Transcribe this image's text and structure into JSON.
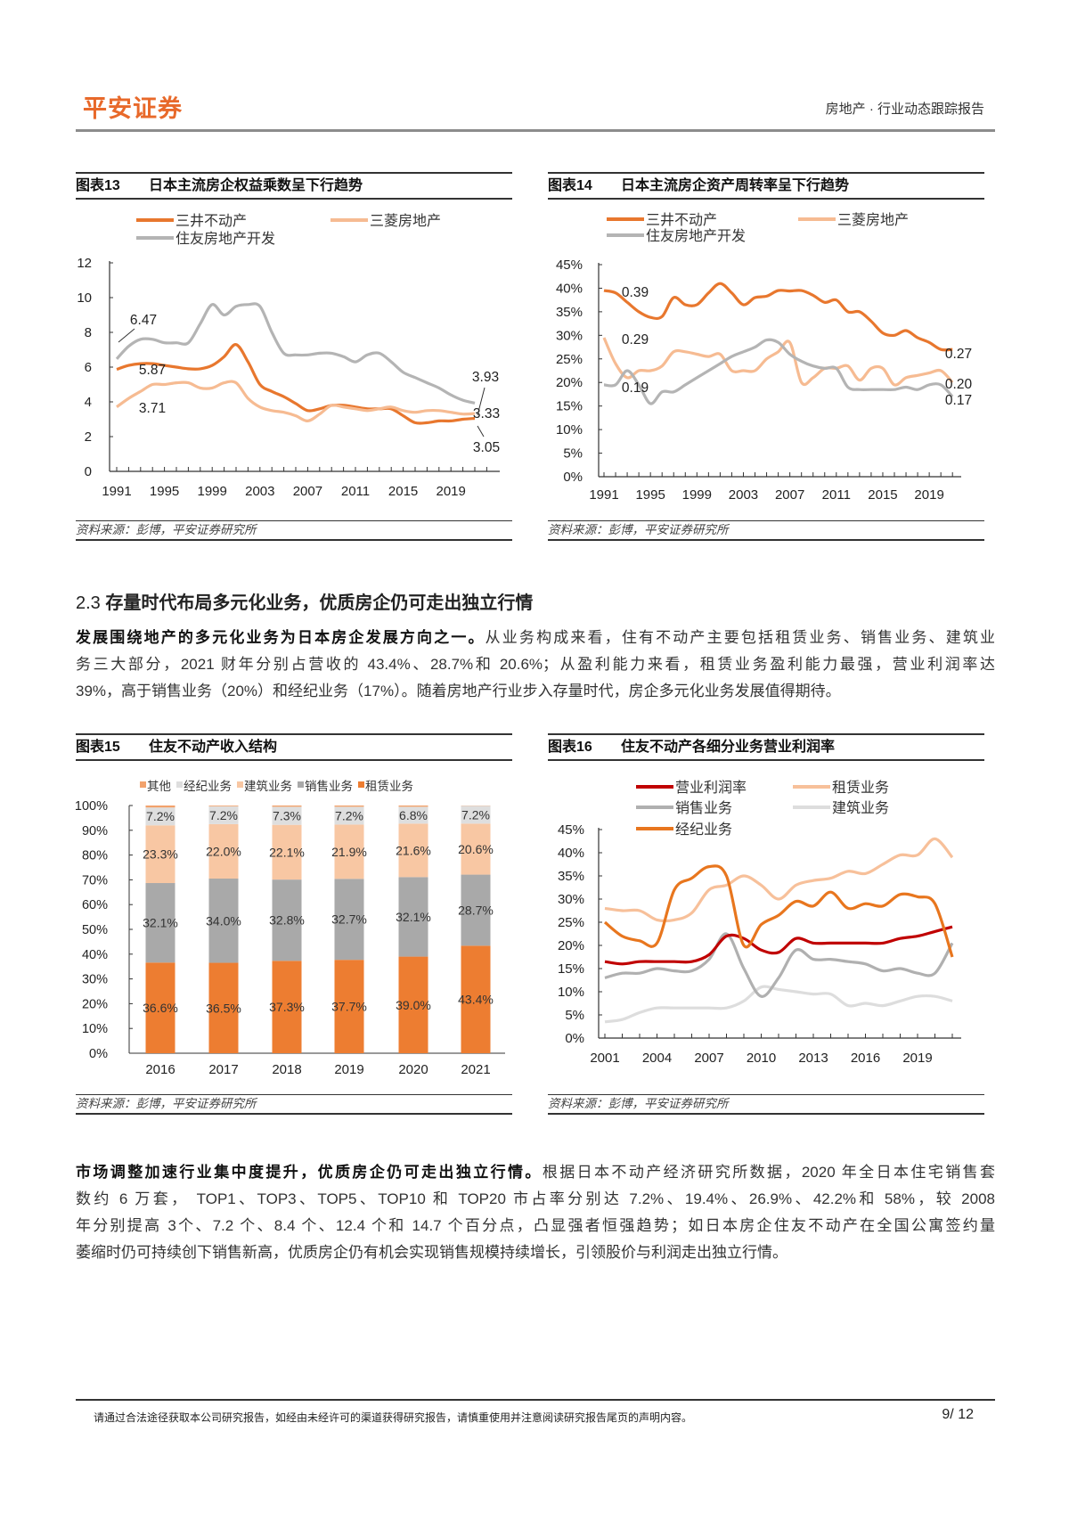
{
  "header": {
    "logo": "平安证券",
    "report_type": "房地产 · 行业动态跟踪报告"
  },
  "section": {
    "number": "2.3",
    "title": "存量时代布局多元化业务，优质房企仍可走出独立行情"
  },
  "paragraphs": [
    {
      "lead": "发展围绕地产的多元化业务为日本房企发展方向之一。",
      "lines": [
        "从业务构成来看，住有不动产主要包括租赁业务、销售业务、建筑业",
        "务三大部分，2021 财年分别占营收的 43.4%、28.7%和 20.6%；从盈利能力来看，租赁业务盈利能力最强，营业利润率达",
        "39%，高于销售业务（20%）和经纪业务（17%）。随着房地产行业步入存量时代，房企多元化业务发展值得期待。"
      ]
    },
    {
      "lead": "市场调整加速行业集中度提升，优质房企仍可走出独立行情。",
      "lines": [
        "根据日本不动产经济研究所数据，2020 年全日本住宅销售套",
        "数约 6 万套， TOP1、TOP3、TOP5、TOP10 和 TOP20 市占率分别达 7.2%、19.4%、26.9%、42.2%和 58%，较 2008",
        "年分别提高 3个、7.2 个、8.4 个、12.4 个和 14.7 个百分点，凸显强者恒强趋势；如日本房企住友不动产在全国公寓签约量",
        "萎缩时仍可持续创下销售新高，优质房企仍有机会实现销售规模持续增长，引领股价与利润走出独立行情。"
      ]
    }
  ],
  "footer": {
    "disclaimer": "请通过合法途径获取本公司研究报告，如经由未经许可的渠道获得研究报告，请慎重使用并注意阅读研究报告尾页的声明内容。",
    "page": "9/ 12"
  },
  "chart_data": [
    {
      "id": "fig13",
      "type": "line",
      "figure_number": "图表13",
      "title": "日本主流房企权益乘数呈下行趋势",
      "source": "资料来源：彭博，平安证券研究所",
      "x": [
        1991,
        1992,
        1993,
        1994,
        1995,
        1996,
        1997,
        1998,
        1999,
        2000,
        2001,
        2002,
        2003,
        2004,
        2005,
        2006,
        2007,
        2008,
        2009,
        2010,
        2011,
        2012,
        2013,
        2014,
        2015,
        2016,
        2017,
        2018,
        2019,
        2020,
        2021
      ],
      "xtick_labels": [
        "1991",
        "1995",
        "1999",
        "2003",
        "2007",
        "2011",
        "2015",
        "2019"
      ],
      "ylim": [
        0,
        12
      ],
      "yticks": [
        "0",
        "2",
        "4",
        "6",
        "8",
        "10",
        "12"
      ],
      "legend": "top",
      "series": [
        {
          "name": "三井不动产",
          "color": "#e8772e",
          "values": [
            5.87,
            6.1,
            6.2,
            6.2,
            6.1,
            6.0,
            5.9,
            5.9,
            6.1,
            6.6,
            7.3,
            6.3,
            5.0,
            4.6,
            4.3,
            3.9,
            3.5,
            3.6,
            3.8,
            3.8,
            3.7,
            3.6,
            3.6,
            3.6,
            3.2,
            2.8,
            2.8,
            2.9,
            2.9,
            3.0,
            3.05
          ]
        },
        {
          "name": "三菱房地产",
          "color": "#f6bb92",
          "values": [
            3.71,
            4.2,
            4.6,
            5.0,
            5.0,
            5.1,
            5.1,
            4.8,
            4.8,
            5.1,
            5.1,
            4.2,
            3.7,
            3.5,
            3.4,
            3.2,
            2.9,
            3.3,
            3.8,
            3.7,
            3.6,
            3.5,
            3.6,
            3.7,
            3.5,
            3.4,
            3.5,
            3.5,
            3.4,
            3.3,
            3.33
          ]
        },
        {
          "name": "住友房地产开发",
          "color": "#b4b4b4",
          "values": [
            6.47,
            7.2,
            7.6,
            7.6,
            7.4,
            7.4,
            7.4,
            8.5,
            9.6,
            9.0,
            9.5,
            9.6,
            9.5,
            8.0,
            6.8,
            6.7,
            6.7,
            6.8,
            6.8,
            6.6,
            6.3,
            6.7,
            6.8,
            6.3,
            5.7,
            5.4,
            5.1,
            4.8,
            4.4,
            4.1,
            3.93
          ]
        }
      ],
      "annotations": [
        "6.47",
        "5.87",
        "3.71",
        "3.93",
        "3.33",
        "3.05"
      ]
    },
    {
      "id": "fig14",
      "type": "line",
      "figure_number": "图表14",
      "title": "日本主流房企资产周转率呈下行趋势",
      "source": "资料来源：彭博，平安证券研究所",
      "x": [
        1991,
        1992,
        1993,
        1994,
        1995,
        1996,
        1997,
        1998,
        1999,
        2000,
        2001,
        2002,
        2003,
        2004,
        2005,
        2006,
        2007,
        2008,
        2009,
        2010,
        2011,
        2012,
        2013,
        2014,
        2015,
        2016,
        2017,
        2018,
        2019,
        2020,
        2021
      ],
      "xtick_labels": [
        "1991",
        "1995",
        "1999",
        "2003",
        "2007",
        "2011",
        "2015",
        "2019"
      ],
      "ylim": [
        0,
        45
      ],
      "yticks": [
        "0%",
        "5%",
        "10%",
        "15%",
        "20%",
        "25%",
        "30%",
        "35%",
        "40%",
        "45%"
      ],
      "legend": "top",
      "series": [
        {
          "name": "三井不动产",
          "color": "#e8772e",
          "values": [
            39.5,
            39,
            37,
            35,
            33.8,
            34,
            38,
            36.5,
            36.5,
            39,
            41,
            39,
            36.5,
            38,
            38.3,
            39.5,
            39.4,
            39.5,
            38.5,
            37,
            37.5,
            35,
            35,
            33,
            30.5,
            30,
            31,
            29.5,
            28.5,
            27,
            27
          ]
        },
        {
          "name": "三菱房地产",
          "color": "#f6bb92",
          "values": [
            29.5,
            24,
            21,
            22.5,
            22.5,
            23.5,
            26.5,
            26.5,
            26,
            25.5,
            26,
            22.5,
            22.5,
            22.5,
            25,
            26.5,
            28.5,
            20,
            21,
            23,
            23,
            23.5,
            20.5,
            23,
            23,
            19.5,
            21,
            21.5,
            22,
            22.5,
            20
          ]
        },
        {
          "name": "住友房地产开发",
          "color": "#b4b4b4",
          "values": [
            19.5,
            19.5,
            22.5,
            19.5,
            15.5,
            18,
            18,
            19.5,
            21,
            22.5,
            24,
            25.5,
            26.5,
            27.5,
            29,
            28.5,
            26,
            24.5,
            23.5,
            23,
            23,
            19,
            18.5,
            18.5,
            18.5,
            18.5,
            19,
            18.5,
            19.5,
            19.5,
            17
          ]
        }
      ],
      "annotations": [
        "0.39",
        "0.29",
        "0.19",
        "0.27",
        "0.20",
        "0.17"
      ]
    },
    {
      "id": "fig15",
      "type": "bar",
      "stacked": true,
      "figure_number": "图表15",
      "title": "住友不动产收入结构",
      "source": "资料来源：彭博，平安证券研究所",
      "categories": [
        "2016",
        "2017",
        "2018",
        "2019",
        "2020",
        "2021"
      ],
      "ylim": [
        0,
        100
      ],
      "yticks": [
        "0%",
        "10%",
        "20%",
        "30%",
        "40%",
        "50%",
        "60%",
        "70%",
        "80%",
        "90%",
        "100%"
      ],
      "legend": "top",
      "legend_order": [
        "其他",
        "经纪业务",
        "建筑业务",
        "销售业务",
        "租赁业务"
      ],
      "series": [
        {
          "name": "租赁业务",
          "color": "#ed7d31",
          "values": [
            36.6,
            36.5,
            37.3,
            37.7,
            39.0,
            43.4
          ],
          "labels": [
            "36.6%",
            "36.5%",
            "37.3%",
            "37.7%",
            "39.0%",
            "43.4%"
          ]
        },
        {
          "name": "销售业务",
          "color": "#a9a9a9",
          "values": [
            32.1,
            34.0,
            32.8,
            32.7,
            32.1,
            28.7
          ],
          "labels": [
            "32.1%",
            "34.0%",
            "32.8%",
            "32.7%",
            "32.1%",
            "28.7%"
          ]
        },
        {
          "name": "建筑业务",
          "color": "#f8c7a3",
          "values": [
            23.3,
            22.0,
            22.1,
            21.9,
            21.6,
            20.6
          ],
          "labels": [
            "23.3%",
            "22.0%",
            "22.1%",
            "21.9%",
            "21.6%",
            "20.6%"
          ]
        },
        {
          "name": "经纪业务",
          "color": "#dedede",
          "values": [
            7.2,
            7.2,
            7.3,
            7.2,
            6.8,
            7.2
          ],
          "labels": [
            "7.2%",
            "7.2%",
            "7.3%",
            "7.2%",
            "6.8%",
            "7.2%"
          ]
        },
        {
          "name": "其他",
          "color": "#f2a26c",
          "values": [
            0.8,
            0.3,
            0.5,
            0.5,
            0.5,
            0.1
          ]
        }
      ]
    },
    {
      "id": "fig16",
      "type": "line",
      "figure_number": "图表16",
      "title": "住友不动产各细分业务营业利润率",
      "source": "资料来源：彭博，平安证券研究所",
      "x": [
        2001,
        2002,
        2003,
        2004,
        2005,
        2006,
        2007,
        2008,
        2009,
        2010,
        2011,
        2012,
        2013,
        2014,
        2015,
        2016,
        2017,
        2018,
        2019,
        2020,
        2021
      ],
      "xtick_labels": [
        "2001",
        "2004",
        "2007",
        "2010",
        "2013",
        "2016",
        "2019"
      ],
      "ylim": [
        0,
        45
      ],
      "yticks": [
        "0%",
        "5%",
        "10%",
        "15%",
        "20%",
        "25%",
        "30%",
        "35%",
        "40%",
        "45%"
      ],
      "legend": "top",
      "series": [
        {
          "name": "营业利润率",
          "color": "#c00000",
          "values": [
            16.5,
            16,
            16.5,
            16.5,
            16.5,
            16.5,
            18,
            22,
            21.5,
            19,
            18.5,
            21.5,
            20.5,
            20.5,
            20.5,
            20.5,
            20.5,
            21.5,
            22,
            23,
            24
          ]
        },
        {
          "name": "租赁业务",
          "color": "#f7c09a",
          "values": [
            28,
            27.5,
            27.5,
            25.5,
            25.5,
            27,
            32,
            33,
            35,
            33,
            30,
            33,
            34,
            34.5,
            36,
            35.5,
            37.5,
            39.5,
            39.5,
            43,
            39
          ]
        },
        {
          "name": "销售业务",
          "color": "#b0b0b0",
          "values": [
            13,
            14,
            14,
            15,
            14.5,
            14.5,
            17,
            22.5,
            15,
            9,
            13,
            19,
            17,
            17,
            16.5,
            16,
            14.5,
            15,
            14,
            14,
            20.5
          ]
        },
        {
          "name": "建筑业务",
          "color": "#dddddd",
          "values": [
            3.5,
            4,
            5.5,
            6.5,
            6.5,
            6.5,
            6.5,
            6.5,
            8,
            11,
            10.5,
            10,
            9.5,
            9.5,
            7,
            7.5,
            7,
            8,
            9,
            9,
            8
          ]
        },
        {
          "name": "经纪业务",
          "color": "#e8761e",
          "values": [
            25,
            22,
            21,
            20.5,
            32,
            34.5,
            37,
            35,
            20,
            24.5,
            26.5,
            29.5,
            28.5,
            31.5,
            28,
            29,
            28.5,
            31,
            30.5,
            29,
            17.5
          ]
        }
      ]
    }
  ]
}
